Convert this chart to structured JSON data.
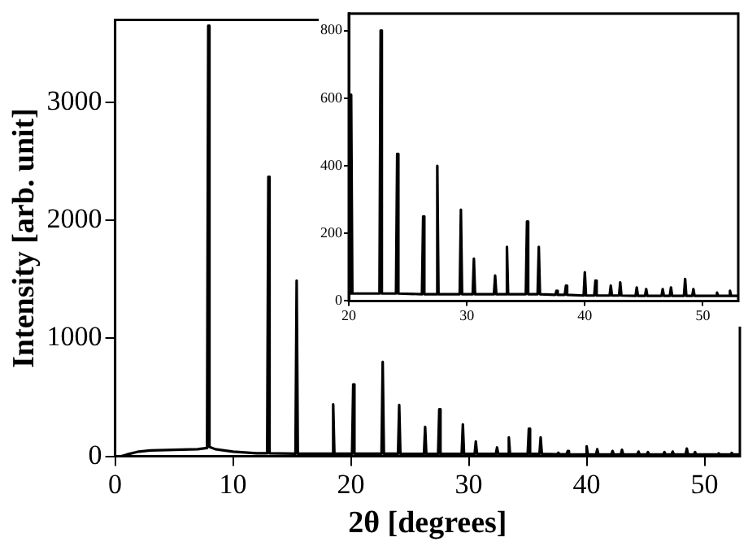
{
  "chart_data": [
    {
      "type": "line",
      "xlabel": "2θ [degrees]",
      "ylabel": "Intensity [arb. unit]",
      "xlim": [
        0,
        53
      ],
      "ylim": [
        0,
        3700
      ],
      "xticks": [
        0,
        10,
        20,
        30,
        40,
        50
      ],
      "yticks": [
        0,
        1000,
        2000,
        3000
      ],
      "marker": "none",
      "line_style": "solid",
      "series": [
        {
          "color": "#000000",
          "x": [
            0,
            0.5,
            1,
            2,
            3,
            5,
            7,
            7.8,
            7.9,
            8.0,
            8.5,
            10,
            12,
            12.9,
            13.0,
            13.1,
            15.3,
            15.4,
            15.5,
            18.4,
            18.5,
            18.6,
            20.1,
            20.2,
            20.3,
            22.6,
            22.7,
            22.8,
            24.0,
            24.1,
            24.2,
            26.2,
            26.3,
            26.4,
            27.4,
            27.5,
            27.6,
            29.4,
            29.5,
            29.6,
            30.5,
            30.6,
            30.7,
            32.3,
            32.4,
            32.5,
            33.3,
            33.4,
            33.5,
            35.0,
            35.1,
            35.2,
            36.0,
            36.1,
            36.2,
            37.5,
            37.6,
            37.7,
            38.3,
            38.4,
            38.5,
            39.9,
            40.0,
            40.1,
            40.8,
            40.9,
            41.0,
            42.1,
            42.2,
            42.3,
            42.9,
            43.0,
            43.1,
            44.3,
            44.4,
            44.5,
            45.1,
            45.2,
            45.3,
            46.5,
            46.6,
            46.7,
            47.2,
            47.3,
            47.4,
            48.4,
            48.5,
            48.6,
            49.1,
            49.2,
            49.3,
            51.1,
            51.2,
            51.3,
            52.2,
            52.3,
            52.4,
            53
          ],
          "values": [
            0,
            0,
            15,
            40,
            50,
            55,
            60,
            70,
            3650,
            80,
            60,
            40,
            25,
            25,
            2370,
            25,
            22,
            1490,
            22,
            22,
            440,
            22,
            22,
            610,
            22,
            22,
            800,
            22,
            22,
            435,
            22,
            20,
            250,
            20,
            20,
            400,
            20,
            20,
            270,
            20,
            20,
            125,
            20,
            20,
            75,
            20,
            20,
            160,
            20,
            20,
            235,
            20,
            20,
            160,
            20,
            18,
            30,
            18,
            18,
            45,
            18,
            16,
            85,
            16,
            16,
            60,
            16,
            16,
            45,
            16,
            16,
            55,
            16,
            15,
            40,
            15,
            15,
            35,
            15,
            15,
            35,
            15,
            15,
            40,
            15,
            15,
            65,
            15,
            15,
            35,
            15,
            15,
            25,
            15,
            15,
            30,
            15,
            15
          ]
        }
      ]
    },
    {
      "type": "line",
      "xlim": [
        20,
        53
      ],
      "ylim": [
        0,
        850
      ],
      "xticks": [
        20,
        30,
        40,
        50
      ],
      "yticks": [
        0,
        200,
        400,
        600,
        800
      ],
      "marker": "none",
      "line_style": "solid",
      "series": [
        {
          "color": "#000000",
          "x": [
            20.0,
            20.1,
            20.2,
            20.3,
            22.6,
            22.7,
            22.8,
            24.0,
            24.1,
            24.2,
            26.2,
            26.3,
            26.4,
            27.4,
            27.5,
            27.6,
            29.4,
            29.5,
            29.6,
            30.5,
            30.6,
            30.7,
            32.3,
            32.4,
            32.5,
            33.3,
            33.4,
            33.5,
            35.0,
            35.1,
            35.2,
            36.0,
            36.1,
            36.2,
            37.5,
            37.6,
            37.7,
            38.3,
            38.4,
            38.5,
            39.9,
            40.0,
            40.1,
            40.8,
            40.9,
            41.0,
            42.1,
            42.2,
            42.3,
            42.9,
            43.0,
            43.1,
            44.3,
            44.4,
            44.5,
            45.1,
            45.2,
            45.3,
            46.5,
            46.6,
            46.7,
            47.2,
            47.3,
            47.4,
            48.4,
            48.5,
            48.6,
            49.1,
            49.2,
            49.3,
            51.1,
            51.2,
            51.3,
            52.2,
            52.3,
            52.4,
            53
          ],
          "values": [
            22,
            22,
            610,
            22,
            22,
            800,
            22,
            22,
            435,
            22,
            20,
            250,
            20,
            20,
            400,
            20,
            20,
            270,
            20,
            20,
            125,
            20,
            20,
            75,
            20,
            20,
            160,
            20,
            20,
            235,
            20,
            20,
            160,
            20,
            18,
            30,
            18,
            18,
            45,
            18,
            16,
            85,
            16,
            16,
            60,
            16,
            16,
            45,
            16,
            16,
            55,
            16,
            15,
            40,
            15,
            15,
            35,
            15,
            15,
            35,
            15,
            15,
            40,
            15,
            15,
            65,
            15,
            15,
            35,
            15,
            15,
            25,
            15,
            15,
            30,
            15,
            15
          ]
        }
      ]
    }
  ]
}
